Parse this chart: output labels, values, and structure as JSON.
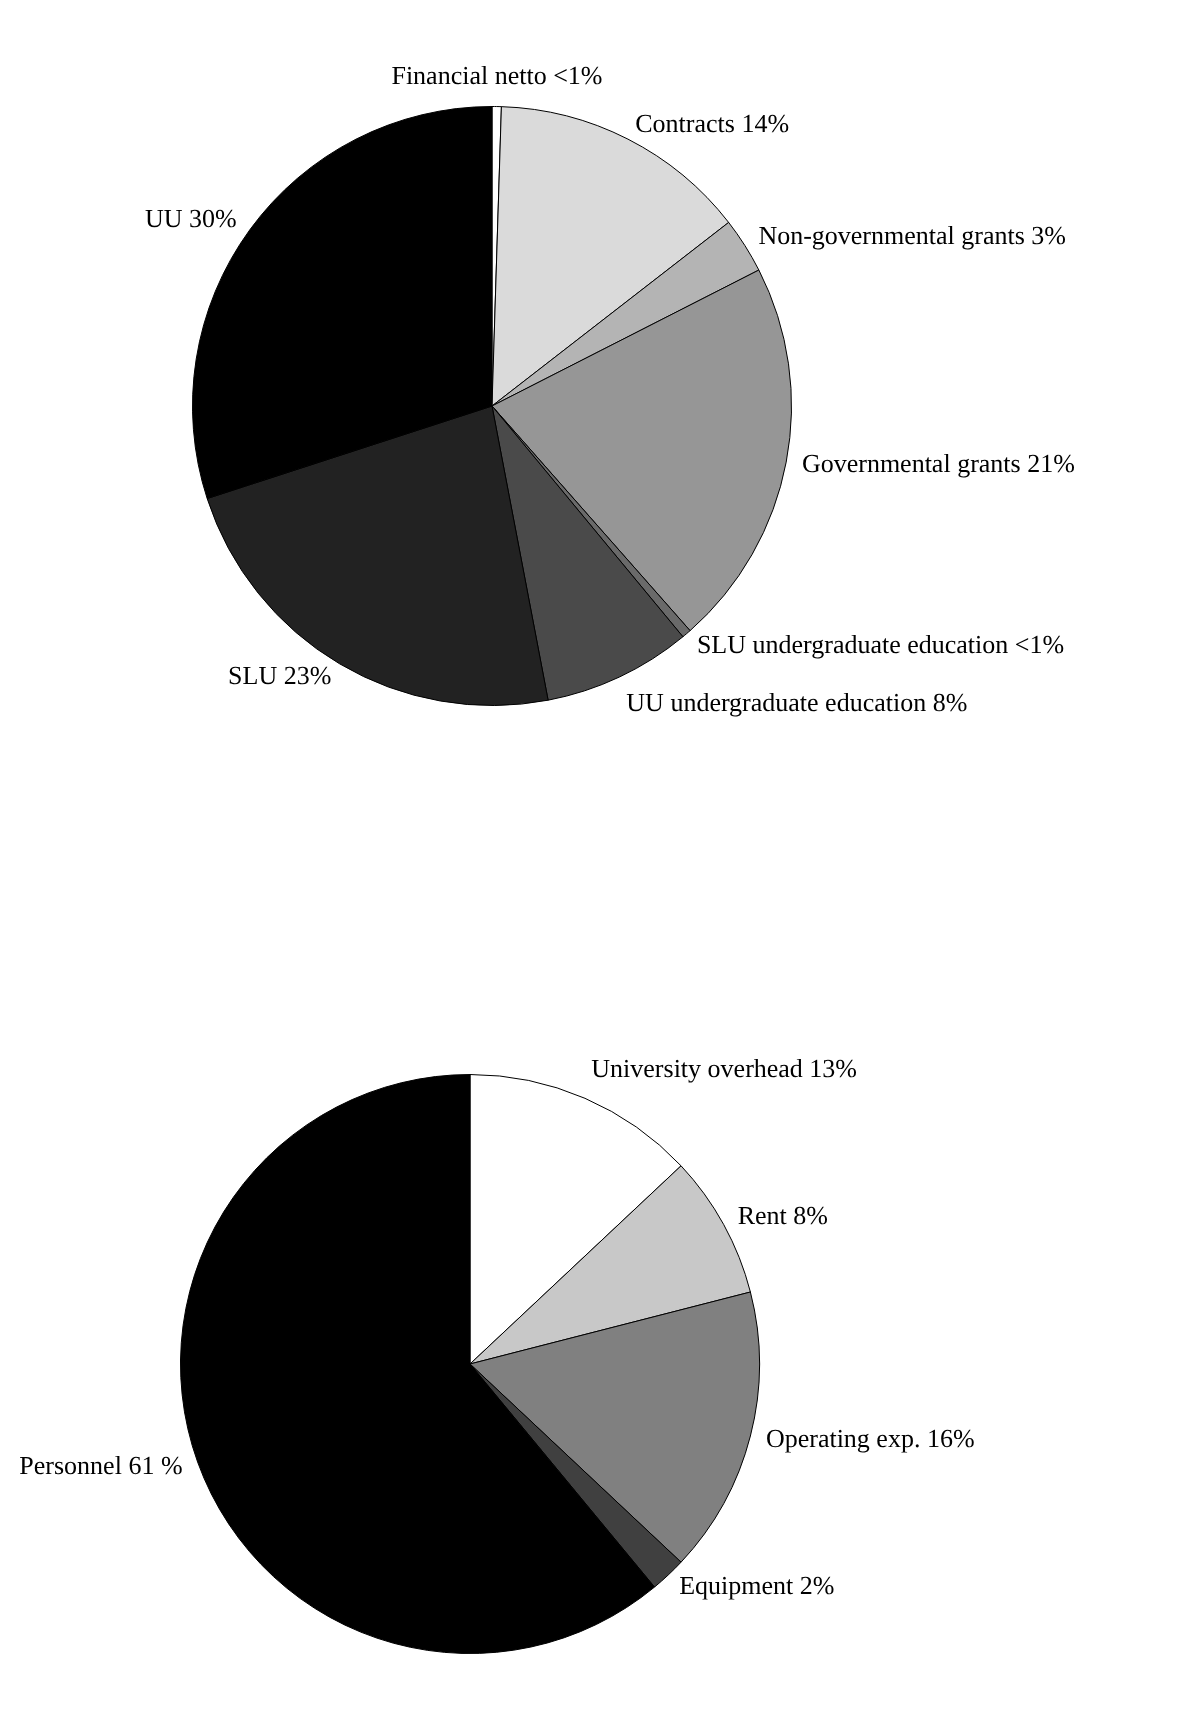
{
  "chart_data": [
    {
      "type": "pie",
      "categories": [
        "Financial netto",
        "Contracts",
        "Non-governmental grants",
        "Governmental grants",
        "SLU undergraduate education",
        "UU undergraduate education",
        "SLU",
        "UU"
      ],
      "values": [
        0.5,
        14,
        3,
        21,
        0.5,
        8,
        23,
        30
      ],
      "value_labels": [
        "<1%",
        "14%",
        "3%",
        "21%",
        "<1%",
        "8%",
        "23%",
        "30%"
      ],
      "colors": [
        "#ffffff",
        "#dadada",
        "#b4b4b4",
        "#969696",
        "#6a6a6a",
        "#4a4a4a",
        "#222222",
        "#000000"
      ]
    },
    {
      "type": "pie",
      "categories": [
        "University overhead",
        "Rent",
        "Operating exp.",
        "Equipment",
        "Personnel"
      ],
      "values": [
        13,
        8,
        16,
        2,
        61
      ],
      "value_labels": [
        "13%",
        "8%",
        "16%",
        "2%",
        "61 %"
      ],
      "colors": [
        "#ffffff",
        "#c8c8c8",
        "#808080",
        "#404040",
        "#000000"
      ]
    }
  ]
}
